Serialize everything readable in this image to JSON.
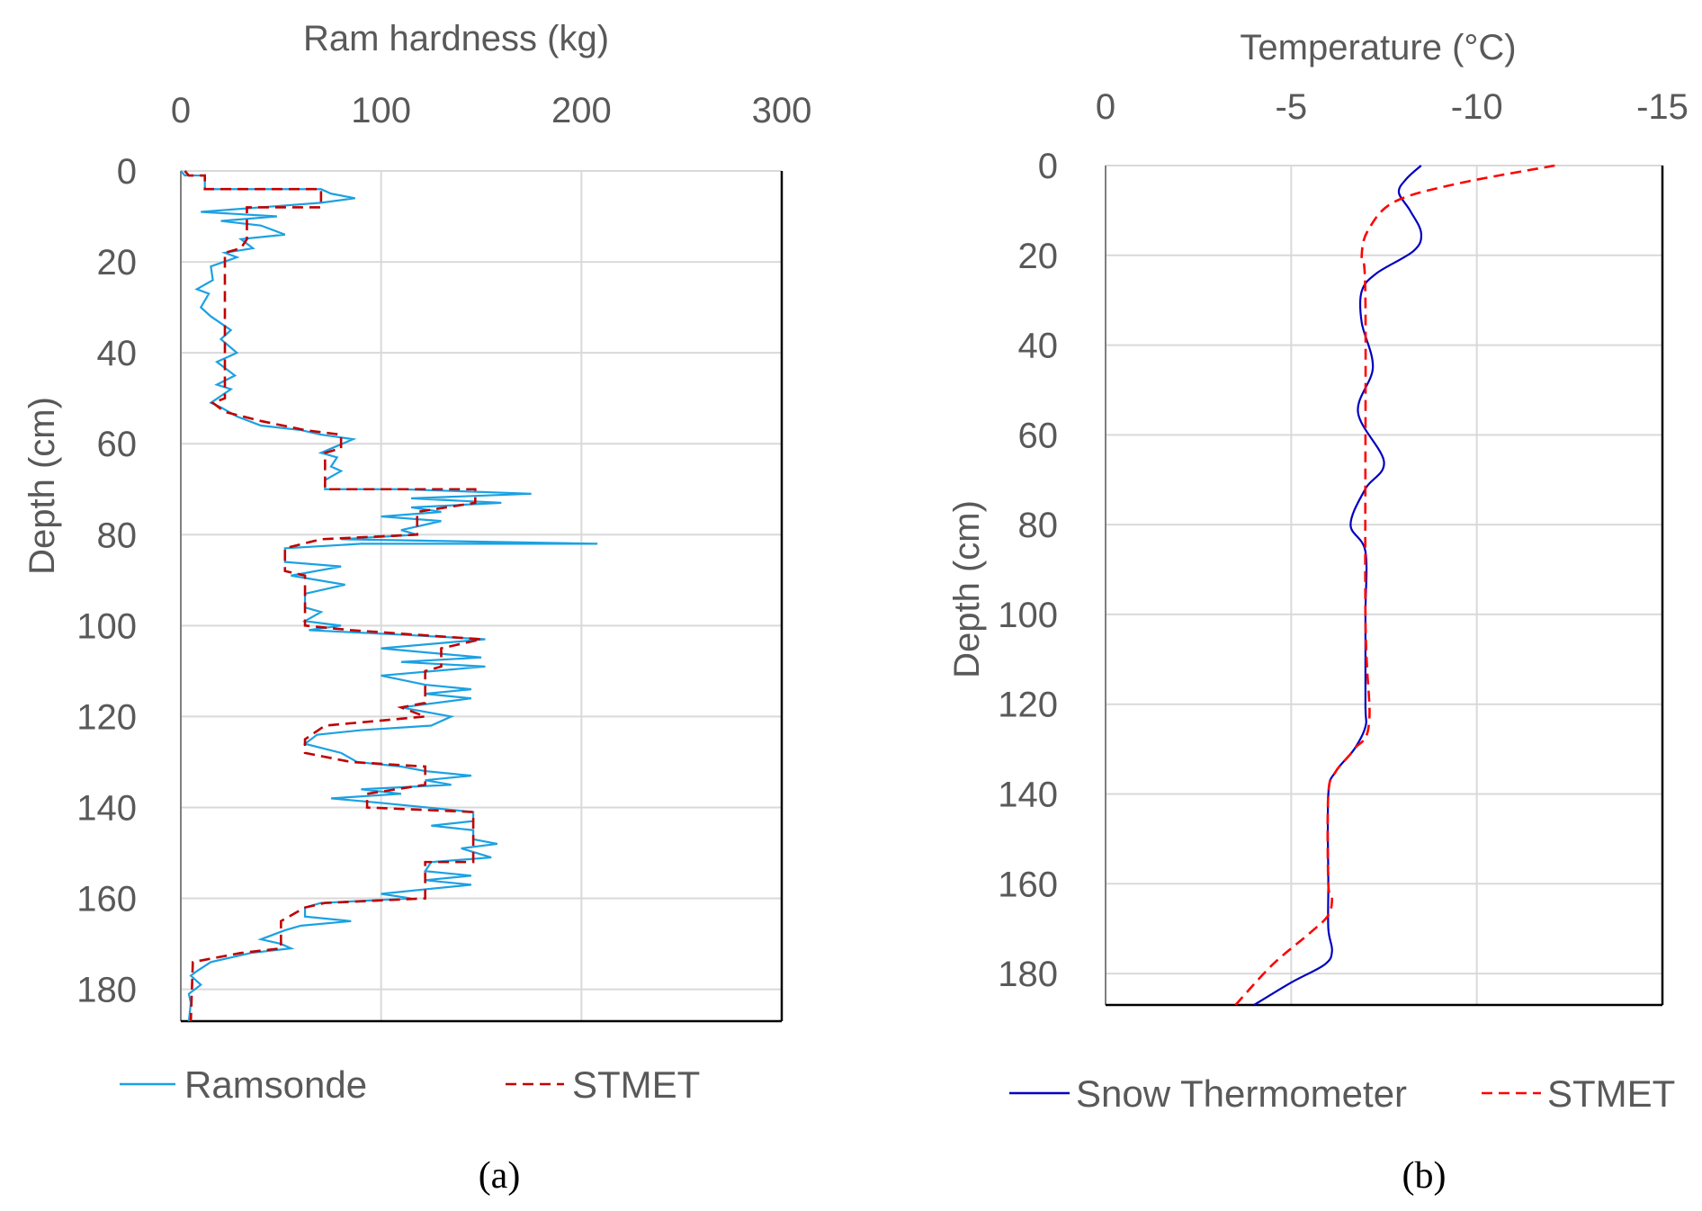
{
  "chart_data": [
    {
      "type": "line",
      "panel_label": "(a)",
      "title": "Ram hardness (kg)",
      "xlabel": "Ram hardness (kg)",
      "ylabel": "Depth (cm)",
      "xlim": [
        0,
        300
      ],
      "ylim": [
        0,
        187
      ],
      "x_axis_position": "top",
      "y_inverted": true,
      "xticks": [
        "0",
        "100",
        "200",
        "300"
      ],
      "yticks": [
        "0",
        "20",
        "40",
        "60",
        "80",
        "100",
        "120",
        "140",
        "160",
        "180"
      ],
      "grid": true,
      "legend_position": "bottom",
      "series": [
        {
          "name": "Ramsonde",
          "color": "#1ba1e2",
          "style": "solid",
          "points": [
            [
              0,
              0
            ],
            [
              2,
              1
            ],
            [
              12,
              1
            ],
            [
              12,
              4
            ],
            [
              70,
              4
            ],
            [
              75,
              5
            ],
            [
              87,
              6
            ],
            [
              70,
              7
            ],
            [
              40,
              8
            ],
            [
              10,
              9
            ],
            [
              48,
              10
            ],
            [
              20,
              11
            ],
            [
              40,
              12
            ],
            [
              52,
              14
            ],
            [
              30,
              15
            ],
            [
              36,
              17
            ],
            [
              22,
              18
            ],
            [
              28,
              19
            ],
            [
              15,
              21
            ],
            [
              16,
              24
            ],
            [
              8,
              26
            ],
            [
              14,
              27
            ],
            [
              10,
              30
            ],
            [
              15,
              32
            ],
            [
              25,
              35
            ],
            [
              20,
              37
            ],
            [
              28,
              40
            ],
            [
              18,
              42
            ],
            [
              27,
              45
            ],
            [
              18,
              47
            ],
            [
              25,
              48
            ],
            [
              15,
              51
            ],
            [
              20,
              52
            ],
            [
              28,
              54
            ],
            [
              40,
              56
            ],
            [
              60,
              57
            ],
            [
              70,
              58
            ],
            [
              86,
              59
            ],
            [
              70,
              62
            ],
            [
              78,
              63
            ],
            [
              75,
              65
            ],
            [
              80,
              66
            ],
            [
              72,
              68
            ],
            [
              72,
              70
            ],
            [
              110,
              70
            ],
            [
              175,
              71
            ],
            [
              115,
              72
            ],
            [
              160,
              73
            ],
            [
              115,
              74
            ],
            [
              130,
              75
            ],
            [
              100,
              76
            ],
            [
              130,
              77
            ],
            [
              110,
              79
            ],
            [
              118,
              80
            ],
            [
              80,
              81
            ],
            [
              208,
              82
            ],
            [
              90,
              82
            ],
            [
              52,
              83
            ],
            [
              52,
              86
            ],
            [
              80,
              87
            ],
            [
              55,
              89
            ],
            [
              82,
              91
            ],
            [
              62,
              93
            ],
            [
              62,
              96
            ],
            [
              70,
              97
            ],
            [
              62,
              99
            ],
            [
              80,
              100
            ],
            [
              64,
              101
            ],
            [
              110,
              102
            ],
            [
              152,
              103
            ],
            [
              100,
              105
            ],
            [
              150,
              107
            ],
            [
              110,
              108
            ],
            [
              152,
              109
            ],
            [
              100,
              111
            ],
            [
              122,
              113
            ],
            [
              145,
              114
            ],
            [
              122,
              115
            ],
            [
              145,
              116
            ],
            [
              110,
              118
            ],
            [
              135,
              120
            ],
            [
              125,
              122
            ],
            [
              90,
              123
            ],
            [
              68,
              124
            ],
            [
              62,
              126
            ],
            [
              80,
              128
            ],
            [
              88,
              130
            ],
            [
              110,
              131
            ],
            [
              122,
              132
            ],
            [
              145,
              133
            ],
            [
              122,
              134
            ],
            [
              135,
              135
            ],
            [
              90,
              136
            ],
            [
              110,
              137
            ],
            [
              75,
              138
            ],
            [
              100,
              139
            ],
            [
              146,
              141
            ],
            [
              146,
              143
            ],
            [
              125,
              144
            ],
            [
              146,
              145
            ],
            [
              146,
              147
            ],
            [
              158,
              148
            ],
            [
              140,
              149
            ],
            [
              155,
              151
            ],
            [
              125,
              152
            ],
            [
              122,
              154
            ],
            [
              145,
              155
            ],
            [
              122,
              156
            ],
            [
              145,
              157
            ],
            [
              122,
              158
            ],
            [
              100,
              159
            ],
            [
              115,
              160
            ],
            [
              70,
              161
            ],
            [
              62,
              162
            ],
            [
              62,
              164
            ],
            [
              85,
              165
            ],
            [
              60,
              166
            ],
            [
              52,
              167
            ],
            [
              40,
              169
            ],
            [
              50,
              170
            ],
            [
              55,
              171
            ],
            [
              35,
              172
            ],
            [
              15,
              174
            ],
            [
              8,
              176
            ],
            [
              5,
              177
            ],
            [
              10,
              179
            ],
            [
              4,
              181
            ],
            [
              5,
              183
            ],
            [
              4,
              187
            ]
          ]
        },
        {
          "name": "STMET",
          "color": "#c00000",
          "style": "dashed",
          "points": [
            [
              2,
              0
            ],
            [
              4,
              1
            ],
            [
              12,
              1
            ],
            [
              12,
              4
            ],
            [
              70,
              4
            ],
            [
              70,
              8
            ],
            [
              33,
              8
            ],
            [
              33,
              15
            ],
            [
              30,
              17
            ],
            [
              22,
              18
            ],
            [
              22,
              50
            ],
            [
              16,
              51
            ],
            [
              22,
              53
            ],
            [
              40,
              55
            ],
            [
              62,
              57
            ],
            [
              80,
              58
            ],
            [
              80,
              61
            ],
            [
              72,
              62
            ],
            [
              72,
              70
            ],
            [
              147,
              70
            ],
            [
              147,
              73
            ],
            [
              118,
              75
            ],
            [
              118,
              80
            ],
            [
              70,
              81
            ],
            [
              52,
              83
            ],
            [
              52,
              88
            ],
            [
              62,
              89
            ],
            [
              62,
              100
            ],
            [
              85,
              101
            ],
            [
              150,
              103
            ],
            [
              130,
              105
            ],
            [
              130,
              109
            ],
            [
              122,
              110
            ],
            [
              122,
              117
            ],
            [
              110,
              118
            ],
            [
              122,
              120
            ],
            [
              72,
              122
            ],
            [
              62,
              125
            ],
            [
              62,
              128
            ],
            [
              85,
              130
            ],
            [
              122,
              131
            ],
            [
              122,
              135
            ],
            [
              93,
              137
            ],
            [
              93,
              140
            ],
            [
              146,
              141
            ],
            [
              146,
              152
            ],
            [
              122,
              152
            ],
            [
              122,
              160
            ],
            [
              72,
              161
            ],
            [
              62,
              162
            ],
            [
              50,
              165
            ],
            [
              50,
              171
            ],
            [
              30,
              172
            ],
            [
              6,
              174
            ],
            [
              5,
              187
            ]
          ]
        }
      ]
    },
    {
      "type": "line",
      "panel_label": "(b)",
      "title": "Temperature (°C)",
      "xlabel": "Temperature (°C)",
      "ylabel": "Depth (cm)",
      "xlim": [
        0,
        -15
      ],
      "ylim": [
        0,
        187
      ],
      "x_axis_position": "top",
      "y_inverted": true,
      "xticks": [
        "0",
        "-5",
        "-10",
        "-15"
      ],
      "yticks": [
        "0",
        "20",
        "40",
        "60",
        "80",
        "100",
        "120",
        "140",
        "160",
        "180"
      ],
      "grid": true,
      "legend_position": "bottom",
      "series": [
        {
          "name": "Snow Thermometer",
          "color": "#0000c0",
          "style": "solid",
          "points": [
            [
              -8.5,
              0
            ],
            [
              -8.1,
              3
            ],
            [
              -7.9,
              6
            ],
            [
              -8.2,
              10
            ],
            [
              -8.5,
              15
            ],
            [
              -8.3,
              19
            ],
            [
              -7.3,
              24
            ],
            [
              -6.9,
              28
            ],
            [
              -6.9,
              35
            ],
            [
              -7.2,
              45
            ],
            [
              -6.8,
              55
            ],
            [
              -7.5,
              66
            ],
            [
              -7.0,
              72
            ],
            [
              -6.6,
              80
            ],
            [
              -7.0,
              86
            ],
            [
              -7.0,
              100
            ],
            [
              -7.0,
              120
            ],
            [
              -7.0,
              125
            ],
            [
              -6.7,
              130
            ],
            [
              -6.2,
              135
            ],
            [
              -6.0,
              140
            ],
            [
              -6.0,
              160
            ],
            [
              -6.0,
              170
            ],
            [
              -6.1,
              175
            ],
            [
              -5.9,
              178
            ],
            [
              -5.0,
              182
            ],
            [
              -4.0,
              187
            ]
          ]
        },
        {
          "name": "STMET",
          "color": "#ff0000",
          "style": "dashed",
          "points": [
            [
              -12.1,
              0
            ],
            [
              -9.5,
              4
            ],
            [
              -7.8,
              8
            ],
            [
              -7.1,
              14
            ],
            [
              -6.9,
              20
            ],
            [
              -7.0,
              30
            ],
            [
              -7.0,
              100
            ],
            [
              -7.1,
              124
            ],
            [
              -6.7,
              130
            ],
            [
              -6.2,
              135
            ],
            [
              -6.0,
              140
            ],
            [
              -6.0,
              160
            ],
            [
              -6.1,
              163
            ],
            [
              -6.0,
              167
            ],
            [
              -5.5,
              171
            ],
            [
              -4.5,
              178
            ],
            [
              -3.5,
              187
            ]
          ]
        }
      ]
    }
  ]
}
